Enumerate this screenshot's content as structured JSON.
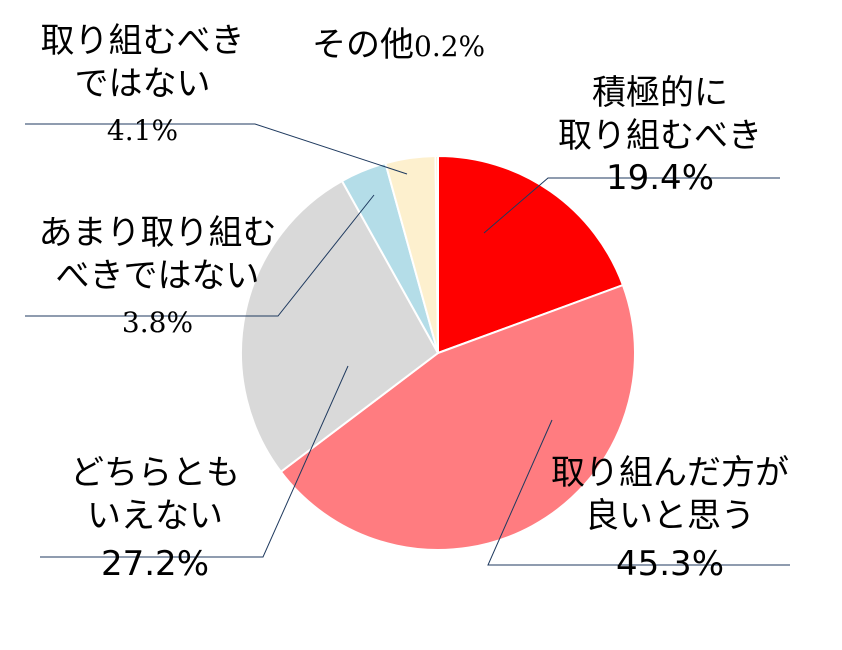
{
  "chart_data": {
    "type": "pie",
    "title": "",
    "slices": [
      {
        "label_lines": [
          "積極的に",
          "取り組むべき"
        ],
        "value": 19.4,
        "value_text": "19.4%",
        "color": "#ff0000"
      },
      {
        "label_lines": [
          "取り組んだ方が",
          "良いと思う"
        ],
        "value": 45.3,
        "value_text": "45.3%",
        "color": "#ff7c80"
      },
      {
        "label_lines": [
          "どちらとも",
          "いえない"
        ],
        "value": 27.2,
        "value_text": "27.2%",
        "color": "#d9d9d9"
      },
      {
        "label_lines": [
          "あまり取り組む",
          "べきではない"
        ],
        "value": 3.8,
        "value_text": "3.8%",
        "color": "#b4dde8"
      },
      {
        "label_lines": [
          "取り組むべき",
          "ではない"
        ],
        "value": 4.1,
        "value_text": "4.1%",
        "color": "#fdf0ce"
      },
      {
        "label_lines": [
          "その他"
        ],
        "value": 0.2,
        "value_text": "0.2%",
        "color": "#ffe0a0"
      }
    ],
    "start_angle_deg": 0,
    "direction": "clockwise",
    "legend": "none"
  }
}
